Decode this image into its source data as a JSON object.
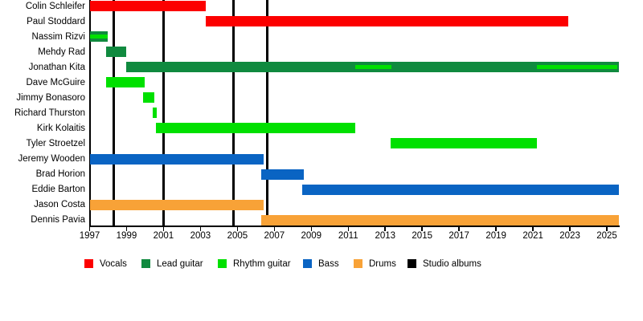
{
  "chart_data": {
    "type": "timeline",
    "axis": {
      "x_min": 1997,
      "x_max": 2025.65,
      "tick_step": 2,
      "ticks": [
        1997,
        1999,
        2001,
        2003,
        2005,
        2007,
        2009,
        2011,
        2013,
        2015,
        2017,
        2019,
        2021,
        2023,
        2025
      ],
      "tick_labels": [
        "1997",
        "1999",
        "2001",
        "2003",
        "2005",
        "2007",
        "2009",
        "2011",
        "2013",
        "2015",
        "2017",
        "2019",
        "2021",
        "2023",
        "2025"
      ],
      "grid": false
    },
    "role_colors": {
      "vocals": "#fc0000",
      "lead_guitar": "#108a3f",
      "rhythm_guitar": "#00e000",
      "bass": "#0a64c3",
      "drums": "#f8a237",
      "studio_albums": "#000000"
    },
    "studio_album_lines": [
      1998.3,
      2001.0,
      2004.8,
      2006.6
    ],
    "members": [
      {
        "name": "Colin Schleifer",
        "bars": [
          {
            "role": "vocals",
            "start": 1997.0,
            "end": 2003.3
          }
        ],
        "overlays": []
      },
      {
        "name": "Paul Stoddard",
        "bars": [
          {
            "role": "vocals",
            "start": 2003.3,
            "end": 2022.9
          }
        ],
        "overlays": []
      },
      {
        "name": "Nassim Rizvi",
        "bars": [
          {
            "role": "lead_guitar",
            "start": 1997.0,
            "end": 1998.0
          }
        ],
        "overlays": [
          {
            "role": "rhythm_guitar",
            "start": 1997.0,
            "end": 1998.0
          }
        ]
      },
      {
        "name": "Mehdy Rad",
        "bars": [
          {
            "role": "lead_guitar",
            "start": 1997.9,
            "end": 1999.0
          }
        ],
        "overlays": []
      },
      {
        "name": "Jonathan Kita",
        "bars": [
          {
            "role": "lead_guitar",
            "start": 1999.0,
            "end": 2025.65
          }
        ],
        "overlays": [
          {
            "role": "rhythm_guitar",
            "start": 2011.4,
            "end": 2013.35
          },
          {
            "role": "rhythm_guitar",
            "start": 2021.2,
            "end": 2025.55
          }
        ]
      },
      {
        "name": "Dave McGuire",
        "bars": [
          {
            "role": "rhythm_guitar",
            "start": 1997.9,
            "end": 2000.0
          }
        ],
        "overlays": []
      },
      {
        "name": "Jimmy Bonasoro",
        "bars": [
          {
            "role": "rhythm_guitar",
            "start": 1999.9,
            "end": 2000.5
          }
        ],
        "overlays": []
      },
      {
        "name": "Richard Thurston",
        "bars": [
          {
            "role": "rhythm_guitar",
            "start": 2000.4,
            "end": 2000.65
          }
        ],
        "overlays": []
      },
      {
        "name": "Kirk Kolaitis",
        "bars": [
          {
            "role": "rhythm_guitar",
            "start": 2000.6,
            "end": 2011.4
          }
        ],
        "overlays": []
      },
      {
        "name": "Tyler Stroetzel",
        "bars": [
          {
            "role": "rhythm_guitar",
            "start": 2013.3,
            "end": 2021.2
          }
        ],
        "overlays": []
      },
      {
        "name": "Jeremy Wooden",
        "bars": [
          {
            "role": "bass",
            "start": 1997.0,
            "end": 2006.4
          }
        ],
        "overlays": []
      },
      {
        "name": "Brad Horion",
        "bars": [
          {
            "role": "bass",
            "start": 2006.3,
            "end": 2008.6
          }
        ],
        "overlays": []
      },
      {
        "name": "Eddie Barton",
        "bars": [
          {
            "role": "bass",
            "start": 2008.5,
            "end": 2025.65
          }
        ],
        "overlays": []
      },
      {
        "name": "Jason Costa",
        "bars": [
          {
            "role": "drums",
            "start": 1997.0,
            "end": 2006.4
          }
        ],
        "overlays": []
      },
      {
        "name": "Dennis Pavia",
        "bars": [
          {
            "role": "drums",
            "start": 2006.3,
            "end": 2025.65
          }
        ],
        "overlays": []
      }
    ]
  },
  "legend": {
    "items": [
      {
        "label": "Vocals",
        "role": "vocals"
      },
      {
        "label": "Lead guitar",
        "role": "lead_guitar"
      },
      {
        "label": "Rhythm guitar",
        "role": "rhythm_guitar"
      },
      {
        "label": "Bass",
        "role": "bass"
      },
      {
        "label": "Drums",
        "role": "drums"
      },
      {
        "label": "Studio albums",
        "role": "studio_albums"
      }
    ]
  }
}
